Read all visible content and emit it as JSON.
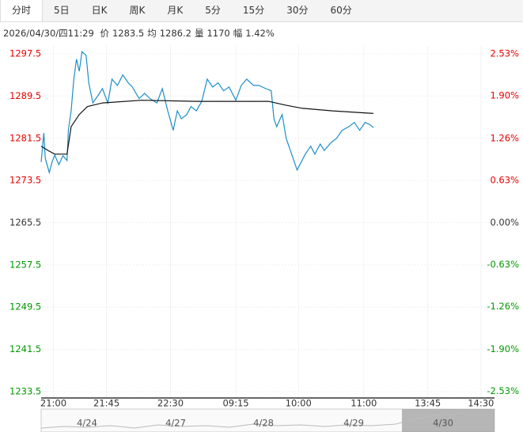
{
  "tabs": [
    "分时",
    "5日",
    "日K",
    "周K",
    "月K",
    "5分",
    "15分",
    "30分",
    "60分"
  ],
  "active_tab": 0,
  "info": {
    "time": "2026/04/30/四11:29",
    "items": [
      {
        "label": "价",
        "value": "1283.5"
      },
      {
        "label": "均",
        "value": "1286.2"
      },
      {
        "label": "量",
        "value": "1170"
      },
      {
        "label": "幅",
        "value": "1.42%"
      }
    ]
  },
  "chart_data": {
    "type": "line",
    "ylim": [
      1232.3,
      1299.0
    ],
    "yticks": [
      1297.5,
      1289.5,
      1281.5,
      1273.5,
      1265.5,
      1257.5,
      1249.5,
      1241.5,
      1233.5
    ],
    "y2lim": [
      -2.63,
      2.65
    ],
    "y2ticks": [
      {
        "value": 2.53,
        "label": "2.53%"
      },
      {
        "value": 1.9,
        "label": "1.90%"
      },
      {
        "value": 1.26,
        "label": "1.26%"
      },
      {
        "value": 0.63,
        "label": "0.63%"
      },
      {
        "value": 0,
        "label": "0.00%"
      },
      {
        "value": -0.63,
        "label": "-0.63%"
      },
      {
        "value": -1.26,
        "label": "-1.26%"
      },
      {
        "value": -1.9,
        "label": "-1.90%"
      },
      {
        "value": -2.53,
        "label": "-2.53%"
      }
    ],
    "xlim": [
      0,
      333
    ],
    "xticks": [
      {
        "value": 9,
        "label": "21:00"
      },
      {
        "value": 48,
        "label": "21:45"
      },
      {
        "value": 95,
        "label": "22:30"
      },
      {
        "value": 143,
        "label": "09:15"
      },
      {
        "value": 189,
        "label": "10:00"
      },
      {
        "value": 237,
        "label": "11:00"
      },
      {
        "value": 284,
        "label": "13:45"
      },
      {
        "value": 323,
        "label": "14:30"
      }
    ],
    "up_color": "#e60000",
    "down_color": "#009900",
    "flat_color": "#333333",
    "grid": true,
    "series": [
      {
        "name": "价",
        "color": "#1e8fc6",
        "x": [
          0,
          2,
          3,
          6,
          8,
          10,
          13,
          16,
          19,
          20,
          22,
          24,
          26,
          28,
          30,
          33,
          35,
          38,
          42,
          45,
          49,
          52,
          56,
          60,
          64,
          67,
          72,
          76,
          80,
          85,
          89,
          93,
          97,
          100,
          103,
          107,
          110,
          114,
          118,
          122,
          126,
          130,
          134,
          138,
          143,
          147,
          151,
          156,
          160,
          165,
          169,
          171,
          173,
          177,
          180,
          184,
          188,
          191,
          194,
          198,
          201,
          205,
          208,
          213,
          217,
          221,
          226,
          230,
          234,
          238,
          242,
          244
        ],
        "values": [
          1277.0,
          1282.5,
          1277.7,
          1275.0,
          1277.0,
          1278.3,
          1276.5,
          1278.2,
          1277.3,
          1283.0,
          1286.7,
          1292.7,
          1296.5,
          1294.2,
          1297.9,
          1297.2,
          1292.0,
          1288.2,
          1289.7,
          1290.9,
          1288.2,
          1292.7,
          1291.5,
          1293.5,
          1292.0,
          1291.2,
          1289.0,
          1290.0,
          1289.0,
          1288.2,
          1290.9,
          1286.7,
          1283.0,
          1286.7,
          1285.2,
          1286.0,
          1287.5,
          1286.7,
          1288.5,
          1292.7,
          1291.2,
          1292.0,
          1290.5,
          1291.2,
          1288.7,
          1291.5,
          1292.7,
          1291.5,
          1291.5,
          1290.9,
          1290.5,
          1285.2,
          1283.7,
          1286.0,
          1281.5,
          1278.5,
          1275.5,
          1277.0,
          1278.5,
          1280.0,
          1278.5,
          1280.4,
          1279.2,
          1280.7,
          1281.5,
          1283.0,
          1283.7,
          1284.5,
          1283.0,
          1284.5,
          1284.0,
          1283.5
        ]
      },
      {
        "name": "均",
        "color": "#111111",
        "x": [
          0,
          5,
          10,
          19,
          22,
          28,
          34,
          45,
          74,
          115,
          167,
          179,
          191,
          214,
          244
        ],
        "values": [
          1280.0,
          1279.2,
          1278.5,
          1278.5,
          1283.7,
          1286.0,
          1287.5,
          1288.2,
          1288.7,
          1288.5,
          1288.5,
          1287.8,
          1287.2,
          1286.7,
          1286.2
        ]
      }
    ]
  },
  "navigator": {
    "dates": [
      "4/24",
      "4/27",
      "4/28",
      "4/29",
      "4/30"
    ]
  }
}
